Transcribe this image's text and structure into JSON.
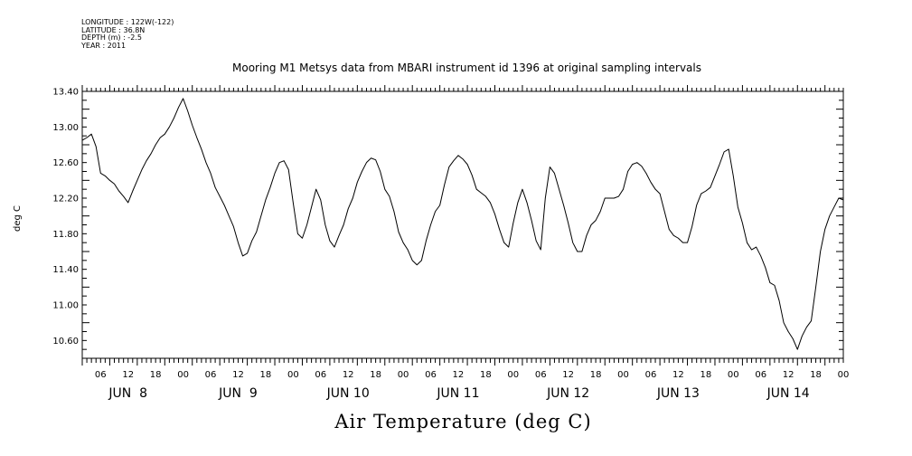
{
  "header": {
    "lines": [
      "LONGITUDE : 122W(-122)",
      "LATITUDE : 36.8N",
      "DEPTH (m) : -2.5",
      "YEAR : 2011"
    ]
  },
  "chart_data": {
    "type": "line",
    "title": "Mooring M1 Metsys data from MBARI instrument id 1396 at original sampling intervals",
    "xlabel": "Air Temperature (deg C)",
    "ylabel": "deg C",
    "ylim": [
      10.4,
      13.4
    ],
    "yticks": [
      "13.40",
      "13.00",
      "12.60",
      "12.20",
      "11.80",
      "11.40",
      "11.00",
      "10.60"
    ],
    "xlim_hours": [
      0,
      166
    ],
    "x_hour_labels": [
      "06",
      "12",
      "18",
      "00",
      "06",
      "12",
      "18",
      "00",
      "06",
      "12",
      "18",
      "00",
      "06",
      "12",
      "18",
      "00",
      "06",
      "12",
      "18",
      "00",
      "06",
      "12",
      "18",
      "00",
      "06",
      "12",
      "18",
      "00"
    ],
    "x_day_labels": [
      "JUN  8",
      "JUN  9",
      "JUN 10",
      "JUN 11",
      "JUN 12",
      "JUN 13",
      "JUN 14"
    ],
    "grid": false,
    "legend": "none",
    "line_color": "#000000",
    "series": [
      {
        "x_hours": [
          0,
          1,
          2,
          3,
          4,
          5,
          6,
          7,
          8,
          9,
          10,
          11,
          12,
          13,
          14,
          15,
          16,
          17,
          18,
          19,
          20,
          21,
          22,
          23,
          24,
          25,
          26,
          27,
          28,
          29,
          30,
          31,
          32,
          33,
          34,
          35,
          36,
          37,
          38,
          39,
          40,
          41,
          42,
          43,
          44,
          45,
          46,
          47,
          48,
          49,
          50,
          51,
          52,
          53,
          54,
          55,
          56,
          57,
          58,
          59,
          60,
          61,
          62,
          63,
          64,
          65,
          66,
          67,
          68,
          69,
          70,
          71,
          72,
          73,
          74,
          75,
          76,
          77,
          78,
          79,
          80,
          81,
          82,
          83,
          84,
          85,
          86,
          87,
          88,
          89,
          90,
          91,
          92,
          93,
          94,
          95,
          96,
          97,
          98,
          99,
          100,
          101,
          102,
          103,
          104,
          105,
          106,
          107,
          108,
          109,
          110,
          111,
          112,
          113,
          114,
          115,
          116,
          117,
          118,
          119,
          120,
          121,
          122,
          123,
          124,
          125,
          126,
          127,
          128,
          129,
          130,
          131,
          132,
          133,
          134,
          135,
          136,
          137,
          138,
          139,
          140,
          141,
          142,
          143,
          144,
          145,
          146,
          147,
          148,
          149,
          150,
          151,
          152,
          153,
          154,
          155,
          156,
          157,
          158,
          159,
          160,
          161,
          162,
          163,
          164,
          165,
          166
        ],
        "values": [
          12.85,
          12.88,
          12.92,
          12.78,
          12.48,
          12.45,
          12.4,
          12.36,
          12.28,
          12.22,
          12.15,
          12.28,
          12.4,
          12.52,
          12.62,
          12.7,
          12.8,
          12.88,
          12.92,
          13.0,
          13.1,
          13.22,
          13.32,
          13.18,
          13.02,
          12.88,
          12.75,
          12.6,
          12.48,
          12.32,
          12.22,
          12.12,
          12.0,
          11.88,
          11.7,
          11.55,
          11.58,
          11.72,
          11.82,
          12.0,
          12.18,
          12.32,
          12.48,
          12.6,
          12.62,
          12.52,
          12.15,
          11.8,
          11.75,
          11.9,
          12.1,
          12.3,
          12.18,
          11.9,
          11.72,
          11.65,
          11.78,
          11.9,
          12.08,
          12.2,
          12.38,
          12.5,
          12.6,
          12.65,
          12.63,
          12.5,
          12.3,
          12.22,
          12.05,
          11.82,
          11.7,
          11.62,
          11.5,
          11.45,
          11.5,
          11.72,
          11.9,
          12.05,
          12.12,
          12.35,
          12.55,
          12.62,
          12.68,
          12.64,
          12.58,
          12.46,
          12.3,
          12.26,
          12.22,
          12.15,
          12.02,
          11.85,
          11.7,
          11.65,
          11.92,
          12.15,
          12.3,
          12.15,
          11.95,
          11.72,
          11.62,
          12.2,
          12.55,
          12.48,
          12.3,
          12.12,
          11.92,
          11.7,
          11.6,
          11.6,
          11.78,
          11.9,
          11.95,
          12.05,
          12.2,
          12.2,
          12.2,
          12.22,
          12.3,
          12.5,
          12.58,
          12.6,
          12.56,
          12.48,
          12.38,
          12.3,
          12.25,
          12.05,
          11.85,
          11.78,
          11.75,
          11.7,
          11.7,
          11.88,
          12.12,
          12.25,
          12.28,
          12.32,
          12.45,
          12.58,
          12.72,
          12.75,
          12.45,
          12.1,
          11.92,
          11.7,
          11.62,
          11.65,
          11.55,
          11.42,
          11.25,
          11.22,
          11.05,
          10.8,
          10.7,
          10.62,
          10.5,
          10.65,
          10.75,
          10.82,
          11.2,
          11.6,
          11.85,
          12.0,
          12.1,
          12.2,
          12.18
        ]
      }
    ]
  }
}
